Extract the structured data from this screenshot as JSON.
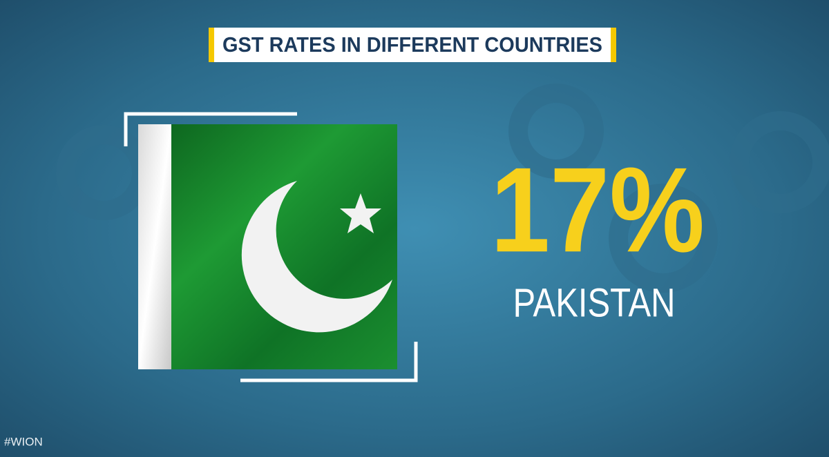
{
  "title": "GST RATES IN DIFFERENT COUNTRIES",
  "rate": "17%",
  "country": "PAKISTAN",
  "hashtag": "#WION"
}
